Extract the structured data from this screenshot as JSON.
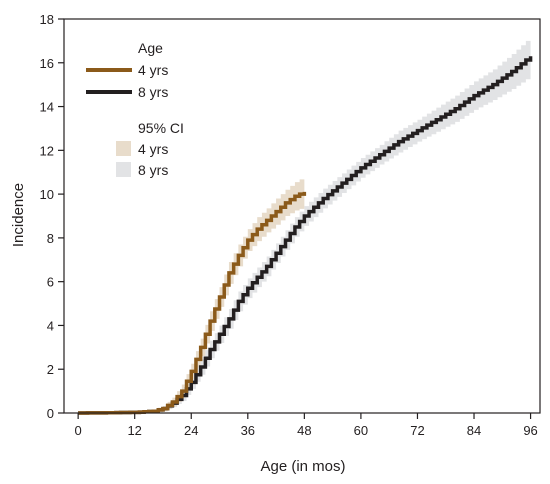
{
  "chart_data": {
    "type": "line",
    "step": true,
    "xlabel": "Age (in mos)",
    "ylabel": "Incidence",
    "xlim": [
      -3,
      98
    ],
    "ylim": [
      0,
      18
    ],
    "xticks": [
      0,
      12,
      24,
      36,
      48,
      60,
      72,
      84,
      96
    ],
    "yticks": [
      0,
      2,
      4,
      6,
      8,
      10,
      12,
      14,
      16,
      18
    ],
    "grid": false,
    "legend": {
      "placement": "top-left",
      "line_title": "Age",
      "ci_title": "95% CI",
      "entries": [
        "4 yrs",
        "8 yrs"
      ]
    },
    "series": [
      {
        "name": "4 yrs",
        "color": "#8b5a1a",
        "ci_color": "#e8dccb",
        "x": [
          0,
          6,
          12,
          16,
          18,
          20,
          22,
          24,
          26,
          28,
          30,
          32,
          34,
          36,
          38,
          40,
          42,
          44,
          46,
          48
        ],
        "y": [
          0,
          0.01,
          0.03,
          0.08,
          0.2,
          0.5,
          1.0,
          1.9,
          3.0,
          4.2,
          5.3,
          6.4,
          7.2,
          7.9,
          8.4,
          8.8,
          9.2,
          9.6,
          9.9,
          10.1
        ],
        "ci_half_width": [
          0,
          0.02,
          0.04,
          0.08,
          0.12,
          0.2,
          0.3,
          0.35,
          0.4,
          0.45,
          0.45,
          0.5,
          0.5,
          0.5,
          0.55,
          0.55,
          0.6,
          0.6,
          0.65,
          0.7
        ]
      },
      {
        "name": "8 yrs",
        "color": "#231f20",
        "ci_color": "#e2e3e5",
        "x": [
          0,
          6,
          12,
          16,
          18,
          20,
          22,
          24,
          26,
          28,
          30,
          32,
          34,
          36,
          38,
          40,
          42,
          44,
          46,
          48,
          52,
          56,
          60,
          64,
          68,
          72,
          76,
          80,
          84,
          88,
          92,
          96
        ],
        "y": [
          0,
          0.01,
          0.03,
          0.08,
          0.2,
          0.45,
          0.8,
          1.4,
          2.1,
          2.9,
          3.6,
          4.3,
          5.1,
          5.7,
          6.2,
          6.7,
          7.3,
          7.9,
          8.5,
          9.0,
          9.8,
          10.5,
          11.2,
          11.8,
          12.4,
          12.9,
          13.4,
          13.9,
          14.5,
          15.0,
          15.6,
          16.3
        ],
        "ci_half_width": [
          0,
          0.02,
          0.04,
          0.08,
          0.12,
          0.18,
          0.25,
          0.3,
          0.35,
          0.4,
          0.4,
          0.45,
          0.45,
          0.45,
          0.45,
          0.45,
          0.45,
          0.45,
          0.45,
          0.45,
          0.45,
          0.45,
          0.45,
          0.45,
          0.5,
          0.5,
          0.55,
          0.6,
          0.65,
          0.7,
          0.8,
          0.9
        ]
      }
    ]
  }
}
